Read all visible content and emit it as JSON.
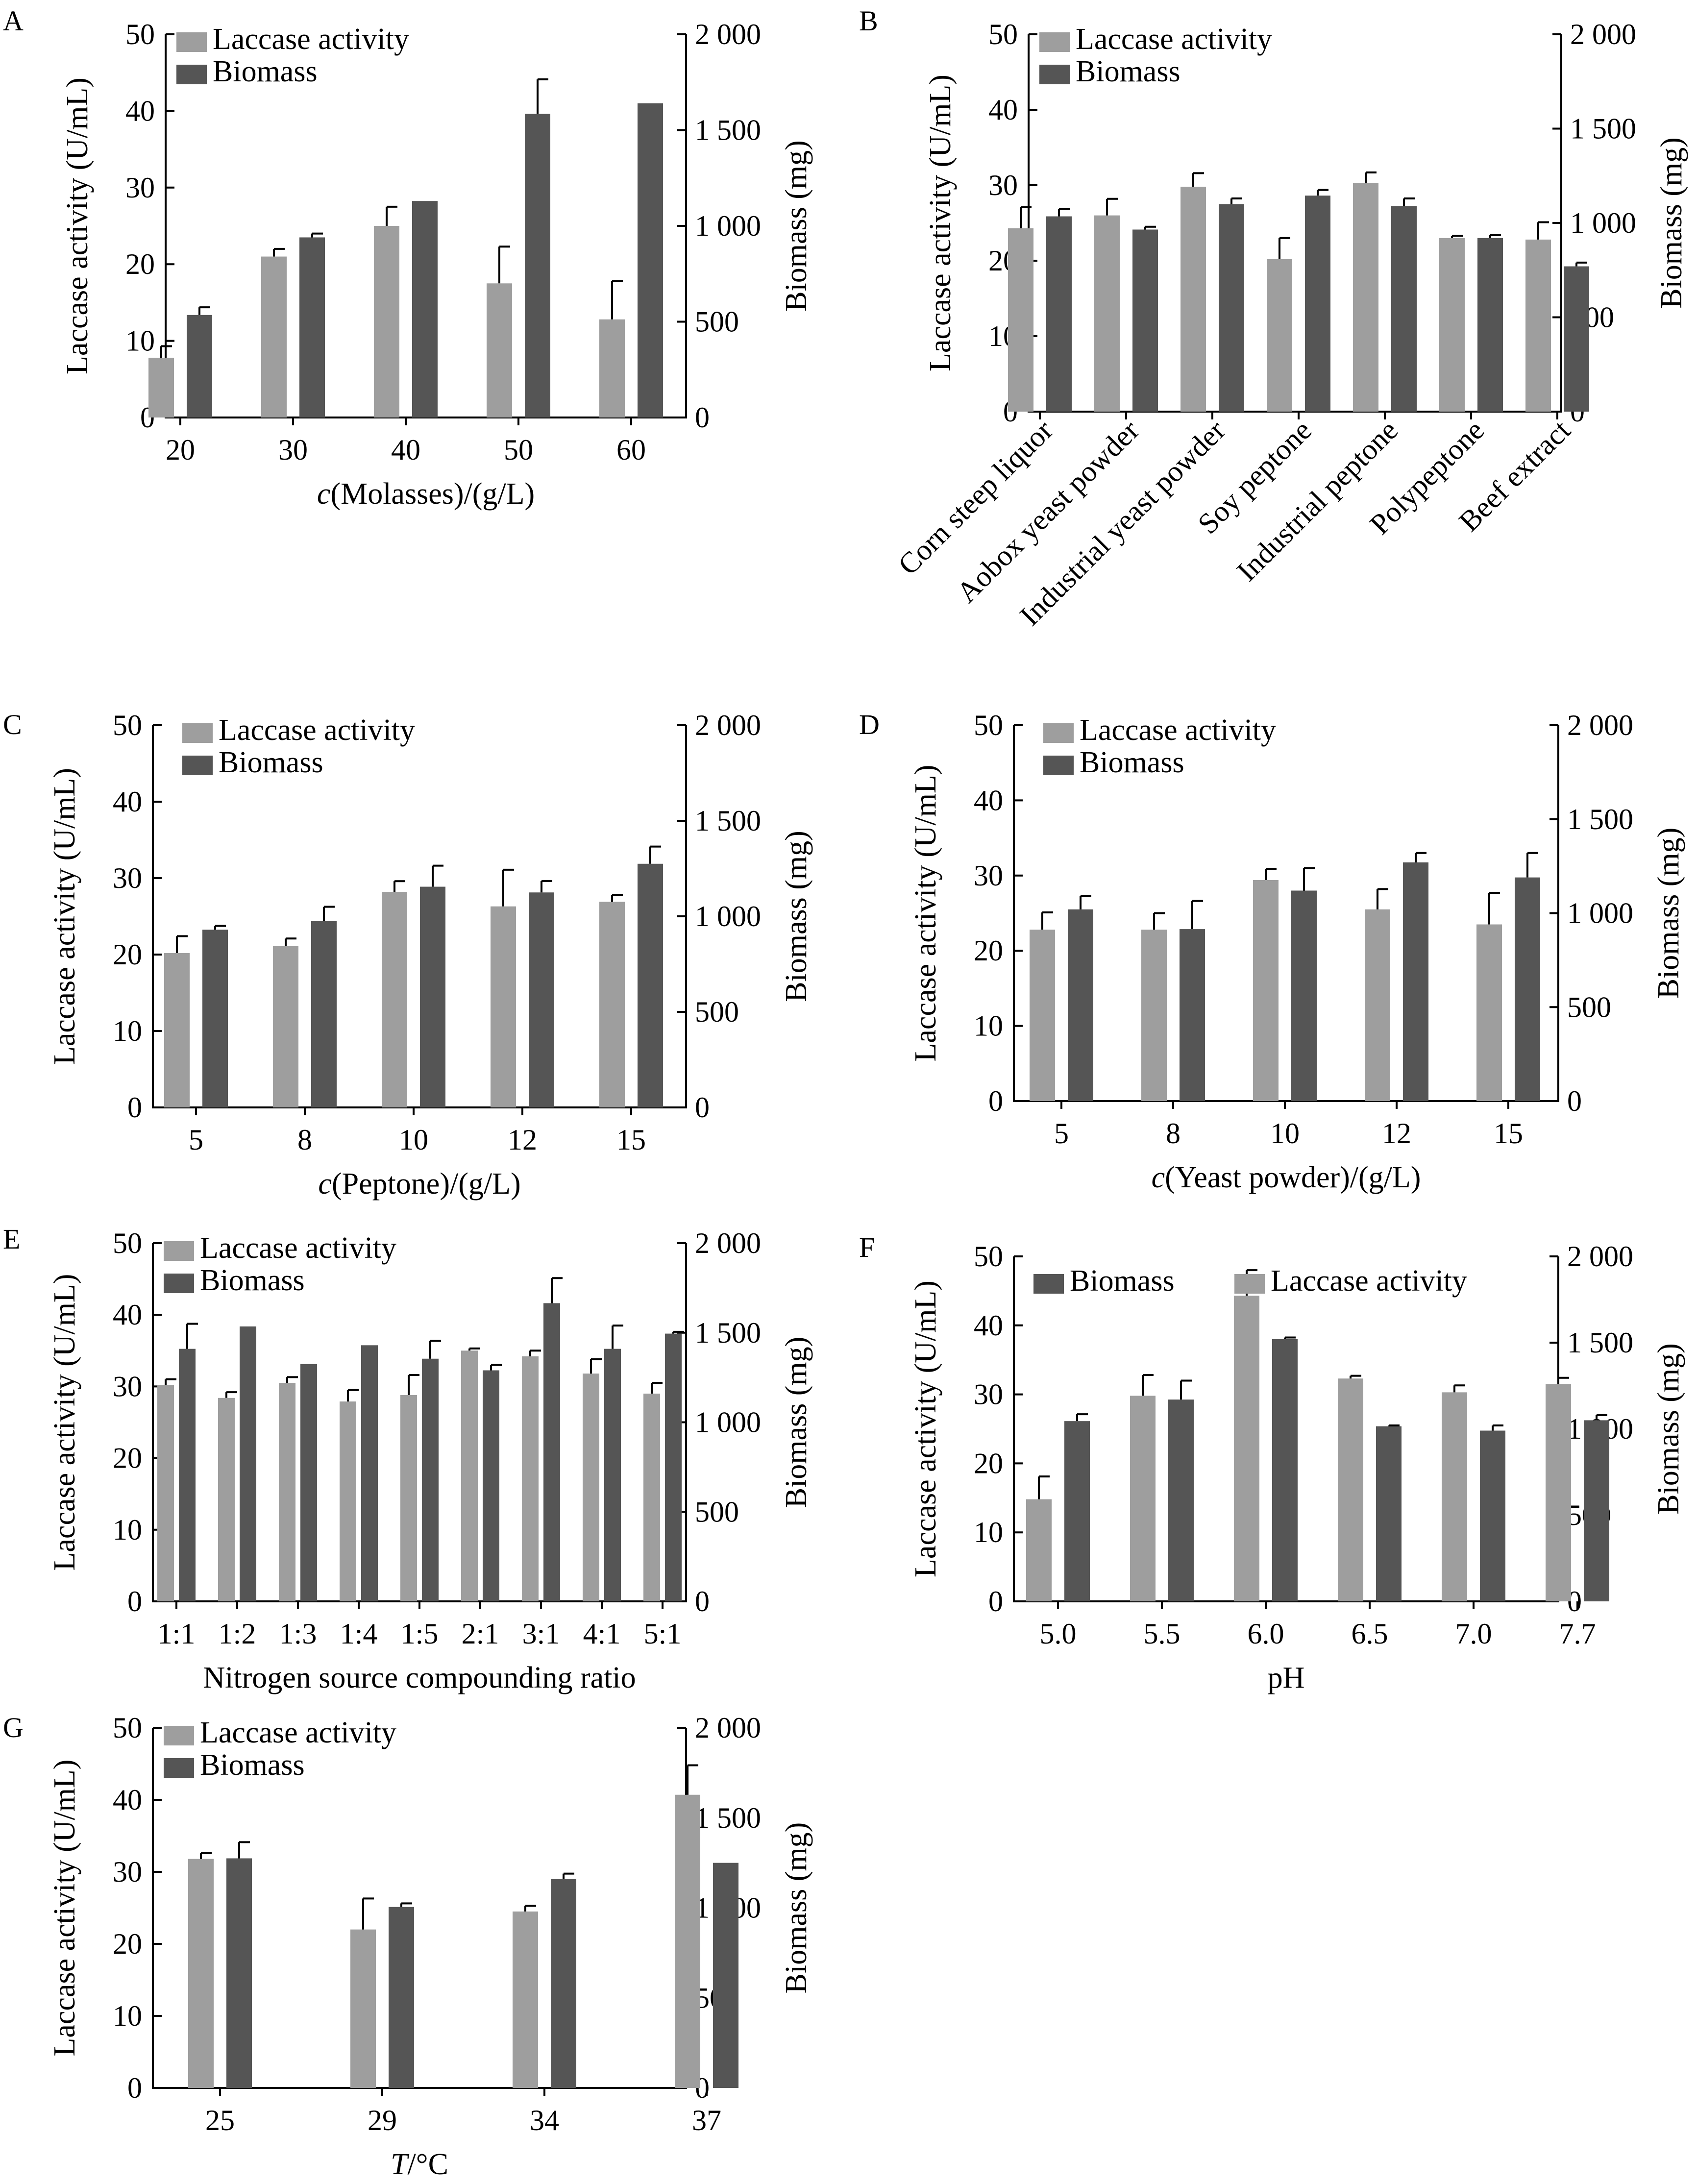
{
  "colors": {
    "laccase": "#9e9e9e",
    "biomass": "#555555",
    "axis": "#000000"
  },
  "chart_data": [
    {
      "panel": "A",
      "type": "bar",
      "xlabel_parts": [
        {
          "t": "c",
          "italic": true
        },
        {
          "t": "(Molasses)/(g/L)",
          "italic": false
        }
      ],
      "ylabel": "Laccase activity (U/mL)",
      "y2label": "Biomass (mg)",
      "ylim": [
        0,
        50
      ],
      "yticks": [
        "0",
        "10",
        "20",
        "30",
        "40",
        "50"
      ],
      "y2lim": [
        0,
        2000
      ],
      "y2ticks": [
        "0",
        "500",
        "1 000",
        "1 500",
        "2 000"
      ],
      "categories": [
        "20",
        "30",
        "40",
        "50",
        "60"
      ],
      "legend": {
        "order": [
          "Laccase activity",
          "Biomass"
        ],
        "placement": "top-left"
      },
      "series": [
        {
          "name": "Laccase activity",
          "axis": "left",
          "values": [
            7.8,
            21.0,
            25.0,
            17.5,
            12.8
          ],
          "errors": [
            1.5,
            1.0,
            2.5,
            4.8,
            5.0
          ]
        },
        {
          "name": "Biomass",
          "axis": "right",
          "values": [
            535,
            940,
            1130,
            1585,
            1640
          ],
          "errors": [
            40,
            20,
            0,
            180,
            0
          ]
        }
      ]
    },
    {
      "panel": "B",
      "type": "bar",
      "rotated_labels": true,
      "xlabel_parts": [],
      "ylabel": "Laccase activity (U/mL)",
      "y2label": "Biomass (mg)",
      "ylim": [
        0,
        50
      ],
      "yticks": [
        "0",
        "10",
        "20",
        "30",
        "40",
        "50"
      ],
      "y2lim": [
        0,
        2000
      ],
      "y2ticks": [
        "0",
        "500",
        "1 000",
        "1 500",
        "2 000"
      ],
      "categories": [
        "Corn steep liquor",
        "Aobox yeast powder",
        "Industrial yeast powder",
        "Soy peptone",
        "Industrial peptone",
        "Polypeptone",
        "Beef extract"
      ],
      "legend": {
        "order": [
          "Laccase activity",
          "Biomass"
        ],
        "placement": "top-left"
      },
      "series": [
        {
          "name": "Laccase activity",
          "axis": "left",
          "values": [
            24.3,
            26.0,
            29.8,
            20.2,
            30.3,
            23.0,
            22.8
          ],
          "errors": [
            2.8,
            2.2,
            1.8,
            2.8,
            1.4,
            0.3,
            2.3
          ]
        },
        {
          "name": "Biomass",
          "axis": "right",
          "values": [
            1035,
            965,
            1100,
            1145,
            1090,
            920,
            770
          ],
          "errors": [
            40,
            15,
            30,
            30,
            40,
            15,
            20
          ]
        }
      ]
    },
    {
      "panel": "C",
      "type": "bar",
      "xlabel_parts": [
        {
          "t": "c",
          "italic": true
        },
        {
          "t": "(Peptone)/(g/L)",
          "italic": false
        }
      ],
      "ylabel": "Laccase activity (U/mL)",
      "y2label": "Biomass (mg)",
      "ylim": [
        0,
        50
      ],
      "yticks": [
        "0",
        "10",
        "20",
        "30",
        "40",
        "50"
      ],
      "y2lim": [
        0,
        2000
      ],
      "y2ticks": [
        "0",
        "500",
        "1 000",
        "1 500",
        "2 000"
      ],
      "categories": [
        "5",
        "8",
        "10",
        "12",
        "15"
      ],
      "legend": {
        "order": [
          "Laccase activity",
          "Biomass"
        ],
        "placement": "top-left"
      },
      "series": [
        {
          "name": "Laccase activity",
          "axis": "left",
          "values": [
            20.2,
            21.1,
            28.2,
            26.3,
            26.9
          ],
          "errors": [
            2.2,
            1.0,
            1.4,
            4.8,
            0.9
          ]
        },
        {
          "name": "Biomass",
          "axis": "right",
          "values": [
            930,
            975,
            1155,
            1125,
            1275
          ],
          "errors": [
            20,
            75,
            110,
            60,
            90
          ]
        }
      ]
    },
    {
      "panel": "D",
      "type": "bar",
      "xlabel_parts": [
        {
          "t": "c",
          "italic": true
        },
        {
          "t": "(Yeast powder)/(g/L)",
          "italic": false
        }
      ],
      "ylabel": "Laccase activity (U/mL)",
      "y2label": "Biomass (mg)",
      "ylim": [
        0,
        50
      ],
      "yticks": [
        "0",
        "10",
        "20",
        "30",
        "40",
        "50"
      ],
      "y2lim": [
        0,
        2000
      ],
      "y2ticks": [
        "0",
        "500",
        "1 000",
        "1 500",
        "2 000"
      ],
      "categories": [
        "5",
        "8",
        "10",
        "12",
        "15"
      ],
      "legend": {
        "order": [
          "Laccase activity",
          "Biomass"
        ],
        "placement": "top-left"
      },
      "series": [
        {
          "name": "Laccase activity",
          "axis": "left",
          "values": [
            22.8,
            22.8,
            29.4,
            25.5,
            23.5
          ],
          "errors": [
            2.3,
            2.2,
            1.5,
            2.7,
            4.2
          ]
        },
        {
          "name": "Biomass",
          "axis": "right",
          "values": [
            1020,
            915,
            1120,
            1270,
            1190
          ],
          "errors": [
            70,
            150,
            120,
            50,
            130
          ]
        }
      ]
    },
    {
      "panel": "E",
      "type": "bar",
      "xlabel_parts": [
        {
          "t": "Nitrogen source compounding ratio",
          "italic": false
        }
      ],
      "ylabel": "Laccase activity (U/mL)",
      "y2label": "Biomass (mg)",
      "ylim": [
        0,
        50
      ],
      "yticks": [
        "0",
        "10",
        "20",
        "30",
        "40",
        "50"
      ],
      "y2lim": [
        0,
        2000
      ],
      "y2ticks": [
        "0",
        "500",
        "1 000",
        "1 500",
        "2 000"
      ],
      "categories": [
        "1:1",
        "1:2",
        "1:3",
        "1:4",
        "1:5",
        "2:1",
        "3:1",
        "4:1",
        "5:1"
      ],
      "legend": {
        "order": [
          "Laccase activity",
          "Biomass"
        ],
        "placement": "top-left"
      },
      "series": [
        {
          "name": "Laccase activity",
          "axis": "left",
          "values": [
            30.2,
            28.4,
            30.5,
            27.9,
            28.8,
            35.0,
            34.2,
            31.8,
            29.0
          ],
          "errors": [
            0.8,
            0.8,
            0.8,
            1.6,
            2.8,
            0.3,
            0.8,
            2.0,
            1.5
          ]
        },
        {
          "name": "Biomass",
          "axis": "right",
          "values": [
            1410,
            1535,
            1325,
            1430,
            1355,
            1290,
            1665,
            1410,
            1495
          ],
          "errors": [
            140,
            0,
            0,
            0,
            100,
            30,
            140,
            130,
            10
          ]
        }
      ]
    },
    {
      "panel": "F",
      "type": "bar",
      "xlabel_parts": [
        {
          "t": "pH",
          "italic": false
        }
      ],
      "ylabel": "Laccase activity (U/mL)",
      "y2label": "Biomass (mg)",
      "ylim": [
        0,
        50
      ],
      "yticks": [
        "0",
        "10",
        "20",
        "30",
        "40",
        "50"
      ],
      "y2lim": [
        0,
        2000
      ],
      "y2ticks": [
        "0",
        "500",
        "1 000",
        "1 500",
        "2 000"
      ],
      "categories": [
        "5.0",
        "5.5",
        "6.0",
        "6.5",
        "7.0",
        "7.7"
      ],
      "legend": {
        "order": [
          "Biomass",
          "Laccase activity"
        ],
        "placement": "top"
      },
      "series": [
        {
          "name": "Laccase activity",
          "axis": "left",
          "values": [
            14.8,
            29.8,
            44.3,
            32.3,
            30.3,
            31.5
          ],
          "errors": [
            3.3,
            3.0,
            3.7,
            0.4,
            1.0,
            0.9
          ]
        },
        {
          "name": "Biomass",
          "axis": "right",
          "values": [
            1045,
            1170,
            1520,
            1015,
            990,
            1050
          ],
          "errors": [
            40,
            110,
            10,
            5,
            30,
            30
          ]
        }
      ]
    },
    {
      "panel": "G",
      "type": "bar",
      "xlabel_parts": [
        {
          "t": "T",
          "italic": true
        },
        {
          "t": "/°C",
          "italic": false
        }
      ],
      "ylabel": "Laccase activity (U/mL)",
      "y2label": "Biomass (mg)",
      "ylim": [
        0,
        50
      ],
      "yticks": [
        "0",
        "10",
        "20",
        "30",
        "40",
        "50"
      ],
      "y2lim": [
        0,
        2000
      ],
      "y2ticks": [
        "0",
        "500",
        "1 000",
        "1 500",
        "2 000"
      ],
      "categories": [
        "25",
        "29",
        "34",
        "37"
      ],
      "legend": {
        "order": [
          "Laccase activity",
          "Biomass"
        ],
        "placement": "top-left"
      },
      "series": [
        {
          "name": "Laccase activity",
          "axis": "left",
          "values": [
            31.8,
            22.0,
            24.5,
            40.7
          ],
          "errors": [
            0.8,
            4.3,
            0.8,
            4.1
          ]
        },
        {
          "name": "Biomass",
          "axis": "right",
          "values": [
            1275,
            1005,
            1160,
            1250
          ],
          "errors": [
            90,
            20,
            30,
            0
          ]
        }
      ]
    }
  ]
}
